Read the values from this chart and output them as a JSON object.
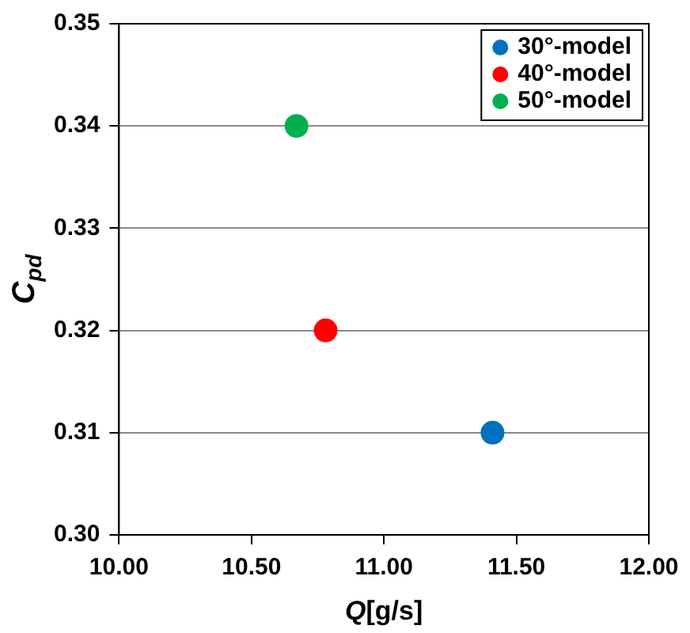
{
  "chart_data": {
    "type": "scatter",
    "xlabel": "Q[g/s]",
    "ylabel": "C$_{pd}$",
    "xlim": [
      10,
      12
    ],
    "xticks": [
      {
        "value": 10,
        "label": "10.00"
      },
      {
        "value": 10.5,
        "label": "10.50"
      },
      {
        "value": 11,
        "label": "11.00"
      },
      {
        "value": 11.5,
        "label": "11.50"
      },
      {
        "value": 12,
        "label": "12.00"
      }
    ],
    "ylim": [
      0.3,
      0.35
    ],
    "yticks": [
      {
        "value": 0.3,
        "label": "0.30"
      },
      {
        "value": 0.31,
        "label": "0.31"
      },
      {
        "value": 0.32,
        "label": "0.32"
      },
      {
        "value": 0.33,
        "label": "0.33"
      },
      {
        "value": 0.34,
        "label": "0.34"
      },
      {
        "value": 0.35,
        "label": "0.35"
      }
    ],
    "grid": "y",
    "legend": "top right",
    "marker": "circle",
    "series": [
      {
        "name": "30°-model",
        "color": "#0070c0",
        "x": [
          11.41
        ],
        "values": [
          0.31
        ]
      },
      {
        "name": "40°-model",
        "color": "#ff0000",
        "x": [
          10.78
        ],
        "values": [
          0.32
        ]
      },
      {
        "name": "50°-model",
        "color": "#00b050",
        "x": [
          10.67
        ],
        "values": [
          0.34
        ]
      }
    ]
  }
}
